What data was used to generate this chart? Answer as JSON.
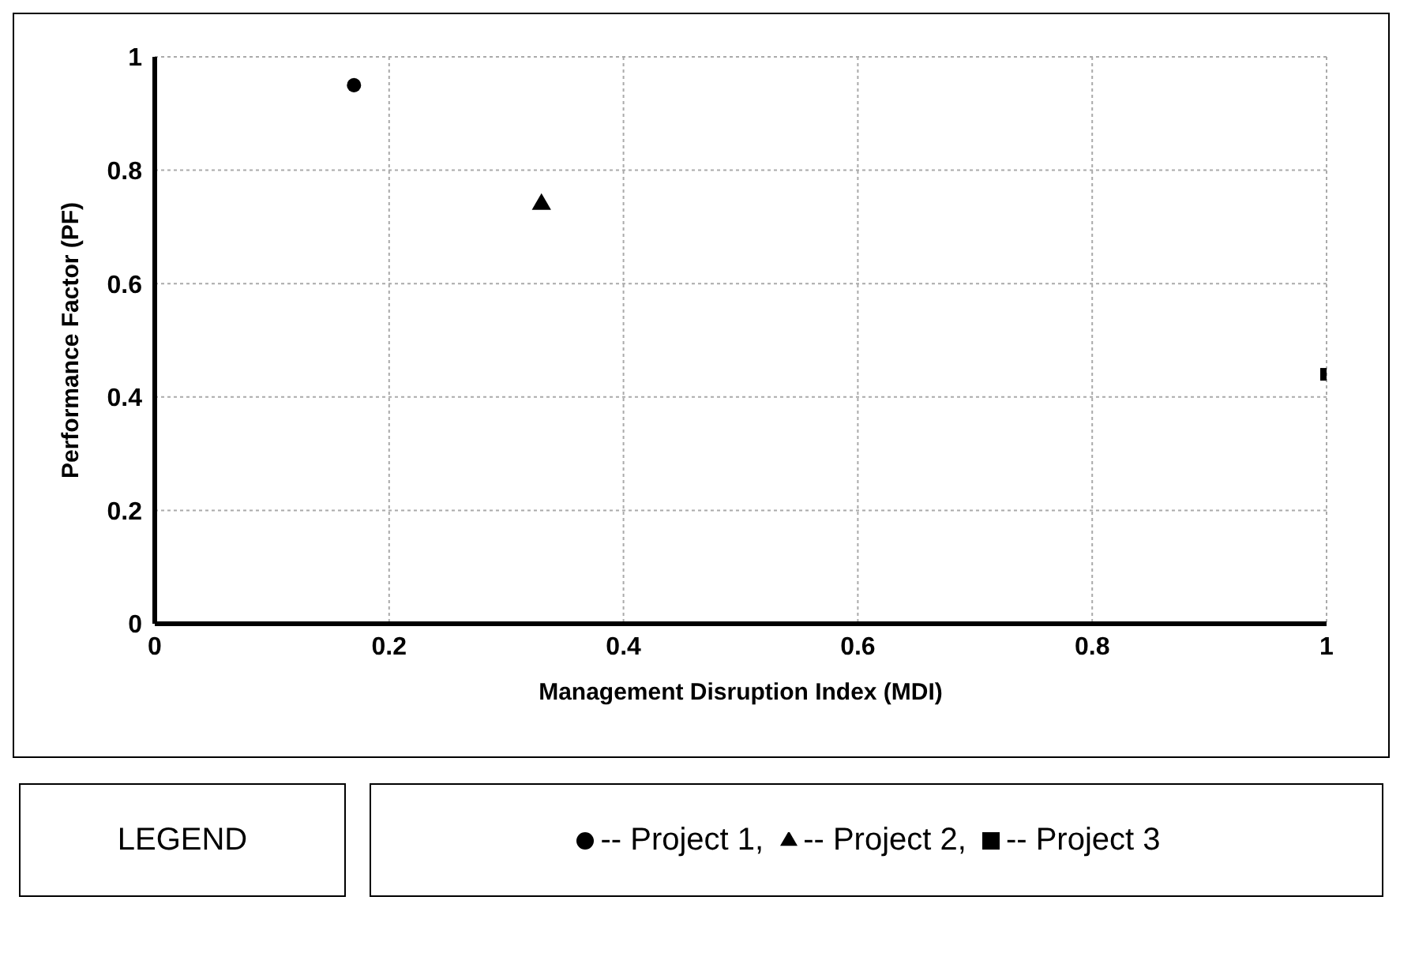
{
  "chart_data": {
    "type": "scatter",
    "xlabel": "Management Disruption Index (MDI)",
    "ylabel": "Performance Factor (PF)",
    "legend_title": "LEGEND",
    "xlim": [
      0,
      1
    ],
    "xticks": [
      0,
      0.2,
      0.4,
      0.6,
      0.8,
      1
    ],
    "ylim": [
      0,
      1
    ],
    "yticks": [
      0,
      0.2,
      0.4,
      0.6,
      0.8,
      1
    ],
    "grid": true,
    "legend": "bottom",
    "series": [
      {
        "name": "-- Project 1,",
        "color": "#000000",
        "marker": "circle",
        "x": [
          0.17
        ],
        "values": [
          0.95
        ]
      },
      {
        "name": "-- Project 2,",
        "color": "#000000",
        "marker": "triangle",
        "x": [
          0.33
        ],
        "values": [
          0.74
        ]
      },
      {
        "name": "-- Project 3",
        "color": "#000000",
        "marker": "square",
        "x": [
          1.0
        ],
        "values": [
          0.44
        ]
      }
    ]
  }
}
